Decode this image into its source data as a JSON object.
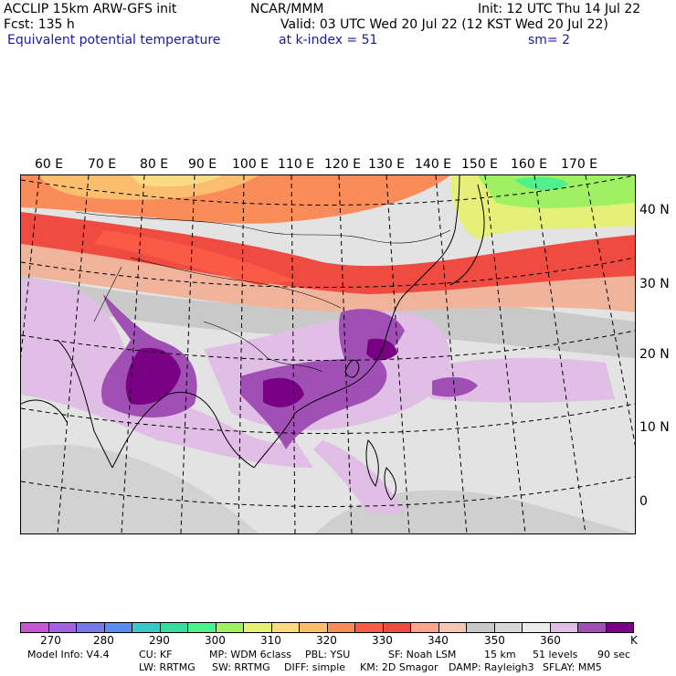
{
  "header": {
    "line1_left": "ACCLIP 15km ARW-GFS init",
    "line1_center": "NCAR/MMM",
    "line1_right": "Init: 12 UTC Thu 14 Jul 22",
    "line2_left": "Fcst:  135 h",
    "line2_right": "Valid: 03 UTC Wed 20 Jul 22 (12 KST Wed 20 Jul 22)",
    "line3_left": "Equivalent potential temperature",
    "line3_center": "at k-index =  51",
    "line3_right": "sm= 2"
  },
  "map": {
    "lon_labels": [
      "60 E",
      "70 E",
      "80 E",
      "90 E",
      "100 E",
      "110 E",
      "120 E",
      "130 E",
      "140 E",
      "150 E",
      "160 E",
      "170 E"
    ],
    "lat_labels": [
      "40 N",
      "30 N",
      "20 N",
      "10 N",
      "0"
    ]
  },
  "colorbar": {
    "colors": [
      "#c35ad2",
      "#a264dc",
      "#7878e6",
      "#5a8cf0",
      "#3cc8c8",
      "#3cdca0",
      "#50f08c",
      "#a0f064",
      "#e6f078",
      "#fada82",
      "#fabe6e",
      "#fa8c5a",
      "#fa5a46",
      "#f04b41",
      "#faa58c",
      "#f0c8b4",
      "#c8c8c8",
      "#d7d7d7",
      "#ebebeb",
      "#e1bee6",
      "#a050b4",
      "#780082"
    ],
    "tick_labels": [
      "270",
      "280",
      "290",
      "300",
      "310",
      "320",
      "330",
      "340",
      "350",
      "360"
    ],
    "unit": "K"
  },
  "footer": {
    "line1": [
      "Model Info: V4.4",
      "CU: KF",
      "MP: WDM 6class",
      "PBL: YSU",
      "SF: Noah LSM",
      "15 km",
      "51 levels",
      "90 sec"
    ],
    "line2": [
      "LW: RRTMG",
      "SW: RRTMG",
      "DIFF: simple",
      "KM: 2D Smagor",
      "DAMP: Rayleigh3",
      "SFLAY: MM5"
    ]
  }
}
